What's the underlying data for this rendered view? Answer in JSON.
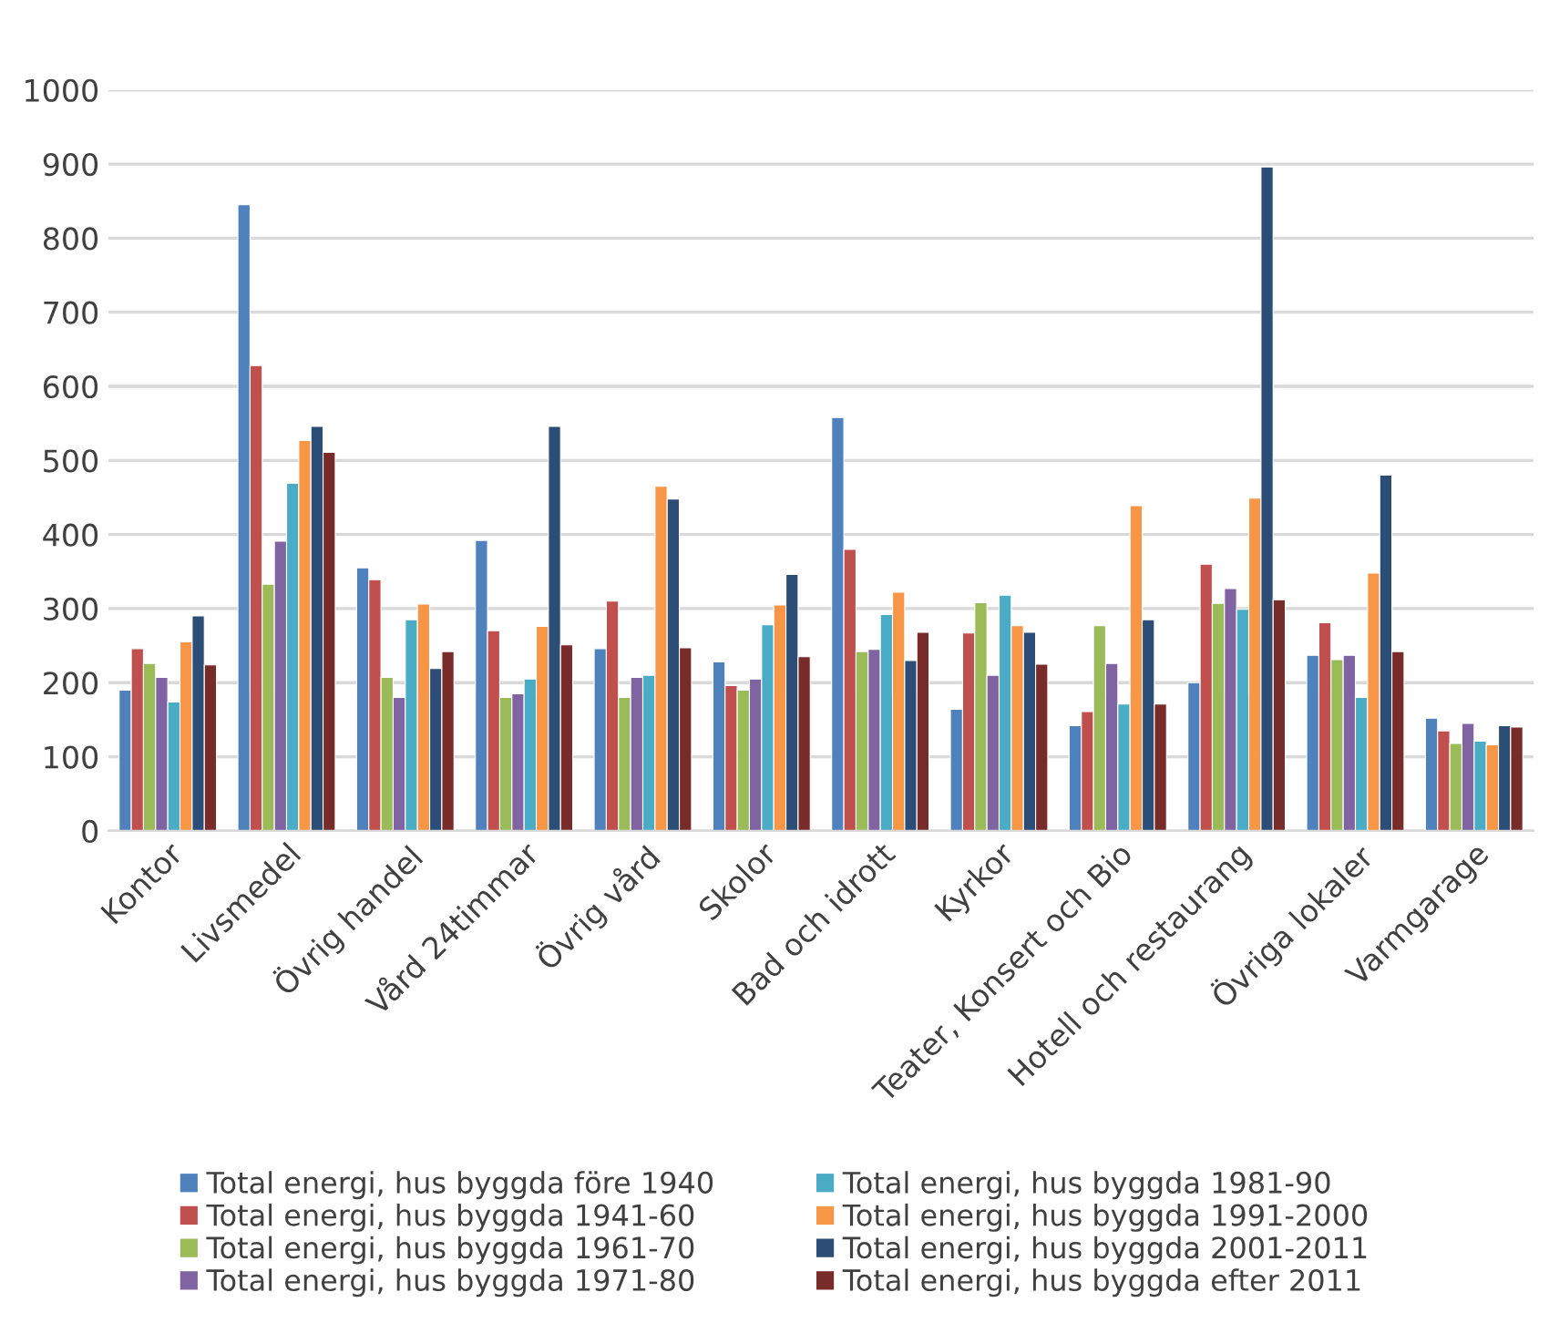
{
  "chart_data": {
    "type": "bar",
    "categories": [
      "Kontor",
      "Livsmedel",
      "Övrig handel",
      "Vård 24timmar",
      "Övrig vård",
      "Skolor",
      "Bad och idrott",
      "Kyrkor",
      "Teater, Konsert och Bio",
      "Hotell och restaurang",
      "Övriga lokaler",
      "Varmgarage"
    ],
    "series": [
      {
        "name": "Total energi, hus byggda före 1940",
        "color": "#4f81bd",
        "values": [
          190,
          845,
          355,
          392,
          246,
          228,
          558,
          164,
          142,
          200,
          237,
          152
        ]
      },
      {
        "name": "Total energi, hus byggda 1941-60",
        "color": "#c0504d",
        "values": [
          246,
          628,
          339,
          270,
          310,
          196,
          380,
          267,
          161,
          360,
          281,
          135
        ]
      },
      {
        "name": "Total energi, hus byggda 1961-70",
        "color": "#9bbb59",
        "values": [
          226,
          333,
          207,
          180,
          180,
          190,
          242,
          308,
          277,
          307,
          231,
          118
        ]
      },
      {
        "name": "Total energi, hus byggda 1971-80",
        "color": "#8064a2",
        "values": [
          207,
          391,
          180,
          185,
          207,
          205,
          245,
          210,
          226,
          327,
          237,
          145
        ]
      },
      {
        "name": "Total energi, hus byggda 1981-90",
        "color": "#4bacc6",
        "values": [
          174,
          469,
          285,
          205,
          210,
          278,
          292,
          318,
          171,
          299,
          180,
          121
        ]
      },
      {
        "name": "Total energi, hus byggda 1991-2000",
        "color": "#f79646",
        "values": [
          255,
          527,
          306,
          276,
          465,
          305,
          322,
          277,
          439,
          449,
          348,
          116
        ]
      },
      {
        "name": "Total energi, hus byggda 2001-2011",
        "color": "#2c4d75",
        "values": [
          290,
          546,
          219,
          546,
          448,
          346,
          230,
          268,
          285,
          896,
          480,
          142
        ]
      },
      {
        "name": "Total energi, hus byggda efter 2011",
        "color": "#772c2a",
        "values": [
          224,
          511,
          242,
          251,
          247,
          235,
          268,
          225,
          171,
          312,
          242,
          140
        ]
      }
    ],
    "ylim": [
      0,
      1000
    ],
    "yticks": [
      0,
      100,
      200,
      300,
      400,
      500,
      600,
      700,
      800,
      900,
      1000
    ],
    "grid": "y",
    "legend": "bottom"
  }
}
